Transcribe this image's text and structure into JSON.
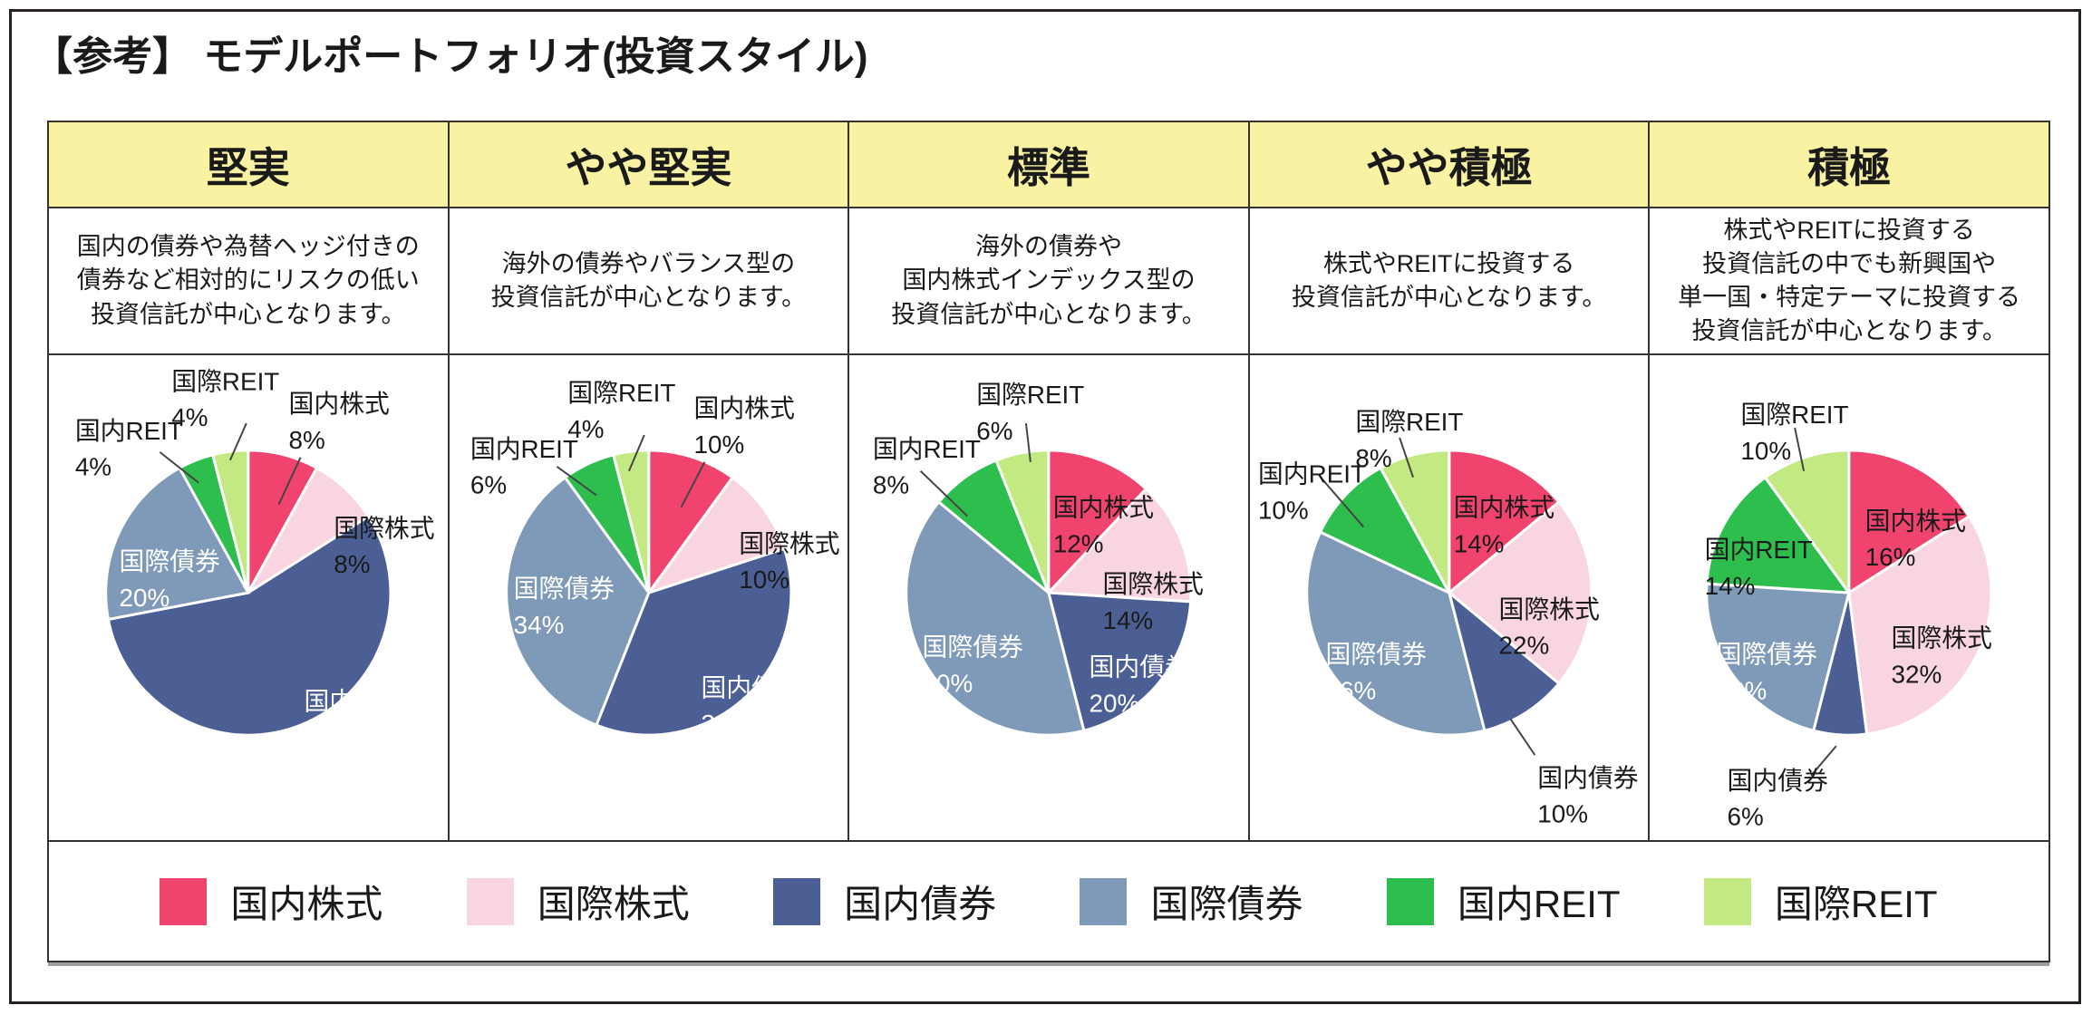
{
  "page_title": "【参考】 モデルポートフォリオ(投資スタイル)",
  "categories": [
    "国内株式",
    "国際株式",
    "国内債券",
    "国際債券",
    "国内REIT",
    "国際REIT"
  ],
  "colors": {
    "国内株式": "#F0436E",
    "国際株式": "#F9D5E1",
    "国内債券": "#4C5F95",
    "国際債券": "#7F9AB8",
    "国内REIT": "#2DBE4E",
    "国際REIT": "#C3E982",
    "header_background": "#F8F2A2",
    "border": "#373130"
  },
  "columns": [
    {
      "header": "堅実",
      "description_lines": [
        "国内の債券や為替ヘッジ付きの",
        "債券など相対的にリスクの低い",
        "投資信託が中心となります。"
      ]
    },
    {
      "header": "やや堅実",
      "description_lines": [
        "海外の債券やバランス型の",
        "投資信託が中心となります。"
      ]
    },
    {
      "header": "標準",
      "description_lines": [
        "海外の債券や",
        "国内株式インデックス型の",
        "投資信託が中心となります。"
      ]
    },
    {
      "header": "やや積極",
      "description_lines": [
        "株式やREITに投資する",
        "投資信託が中心となります。"
      ]
    },
    {
      "header": "積極",
      "description_lines": [
        "株式やREITに投資する",
        "投資信託の中でも新興国や",
        "単一国・特定テーマに投資する",
        "投資信託が中心となります。"
      ]
    }
  ],
  "chart_data": [
    {
      "type": "pie",
      "title": "堅実",
      "labels": [
        "国内株式",
        "国際株式",
        "国内債券",
        "国際債券",
        "国内REIT",
        "国際REIT"
      ],
      "values": [
        8,
        8,
        56,
        20,
        4,
        4
      ],
      "value_labels": [
        "8%",
        "8%",
        "56%",
        "20%",
        "4%",
        "4%"
      ]
    },
    {
      "type": "pie",
      "title": "やや堅実",
      "labels": [
        "国内株式",
        "国際株式",
        "国内債券",
        "国際債券",
        "国内REIT",
        "国際REIT"
      ],
      "values": [
        10,
        10,
        36,
        34,
        6,
        4
      ],
      "value_labels": [
        "10%",
        "10%",
        "36%",
        "34%",
        "6%",
        "4%"
      ]
    },
    {
      "type": "pie",
      "title": "標準",
      "labels": [
        "国内株式",
        "国際株式",
        "国内債券",
        "国際債券",
        "国内REIT",
        "国際REIT"
      ],
      "values": [
        12,
        14,
        20,
        40,
        8,
        6
      ],
      "value_labels": [
        "12%",
        "14%",
        "20%",
        "40%",
        "8%",
        "6%"
      ]
    },
    {
      "type": "pie",
      "title": "やや積極",
      "labels": [
        "国内株式",
        "国際株式",
        "国内債券",
        "国際債券",
        "国内REIT",
        "国際REIT"
      ],
      "values": [
        14,
        22,
        10,
        36,
        10,
        8
      ],
      "value_labels": [
        "14%",
        "22%",
        "10%",
        "36%",
        "10%",
        "8%"
      ]
    },
    {
      "type": "pie",
      "title": "積極",
      "labels": [
        "国内株式",
        "国際株式",
        "国内債券",
        "国際債券",
        "国内REIT",
        "国際REIT"
      ],
      "values": [
        16,
        32,
        6,
        22,
        14,
        10
      ],
      "value_labels": [
        "16%",
        "32%",
        "6%",
        "22%",
        "14%",
        "10%"
      ]
    }
  ],
  "legend": {
    "items": [
      {
        "label": "国内株式",
        "color": "#F0436E"
      },
      {
        "label": "国際株式",
        "color": "#F9D5E1"
      },
      {
        "label": "国内債券",
        "color": "#4C5F95"
      },
      {
        "label": "国際債券",
        "color": "#7F9AB8"
      },
      {
        "label": "国内REIT",
        "color": "#2DBE4E"
      },
      {
        "label": "国際REIT",
        "color": "#C3E982"
      }
    ]
  }
}
